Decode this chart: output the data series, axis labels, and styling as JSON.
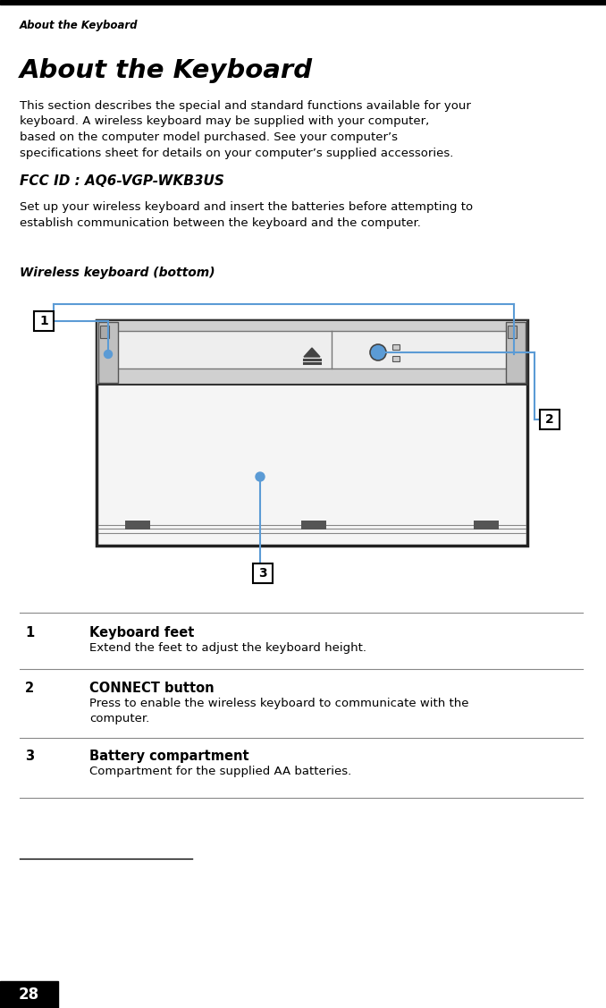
{
  "bg_color": "#ffffff",
  "header_text": "About the Keyboard",
  "page_number": "28",
  "title": "About the Keyboard",
  "body_text": "This section describes the special and standard functions available for your\nkeyboard. A wireless keyboard may be supplied with your computer,\nbased on the computer model purchased. See your computer’s\nspecifications sheet for details on your computer’s supplied accessories.",
  "fcc_id": "FCC ID : AQ6-VGP-WKB3US",
  "setup_text": "Set up your wireless keyboard and insert the batteries before attempting to\nestablish communication between the keyboard and the computer.",
  "caption": "Wireless keyboard (bottom)",
  "items": [
    {
      "num": "1",
      "title": "Keyboard feet",
      "desc": "Extend the feet to adjust the keyboard height."
    },
    {
      "num": "2",
      "title": "CONNECT button",
      "desc": "Press to enable the wireless keyboard to communicate with the\ncomputer."
    },
    {
      "num": "3",
      "title": "Battery compartment",
      "desc": "Compartment for the supplied AA batteries."
    }
  ],
  "line_color": "#5b9bd5"
}
